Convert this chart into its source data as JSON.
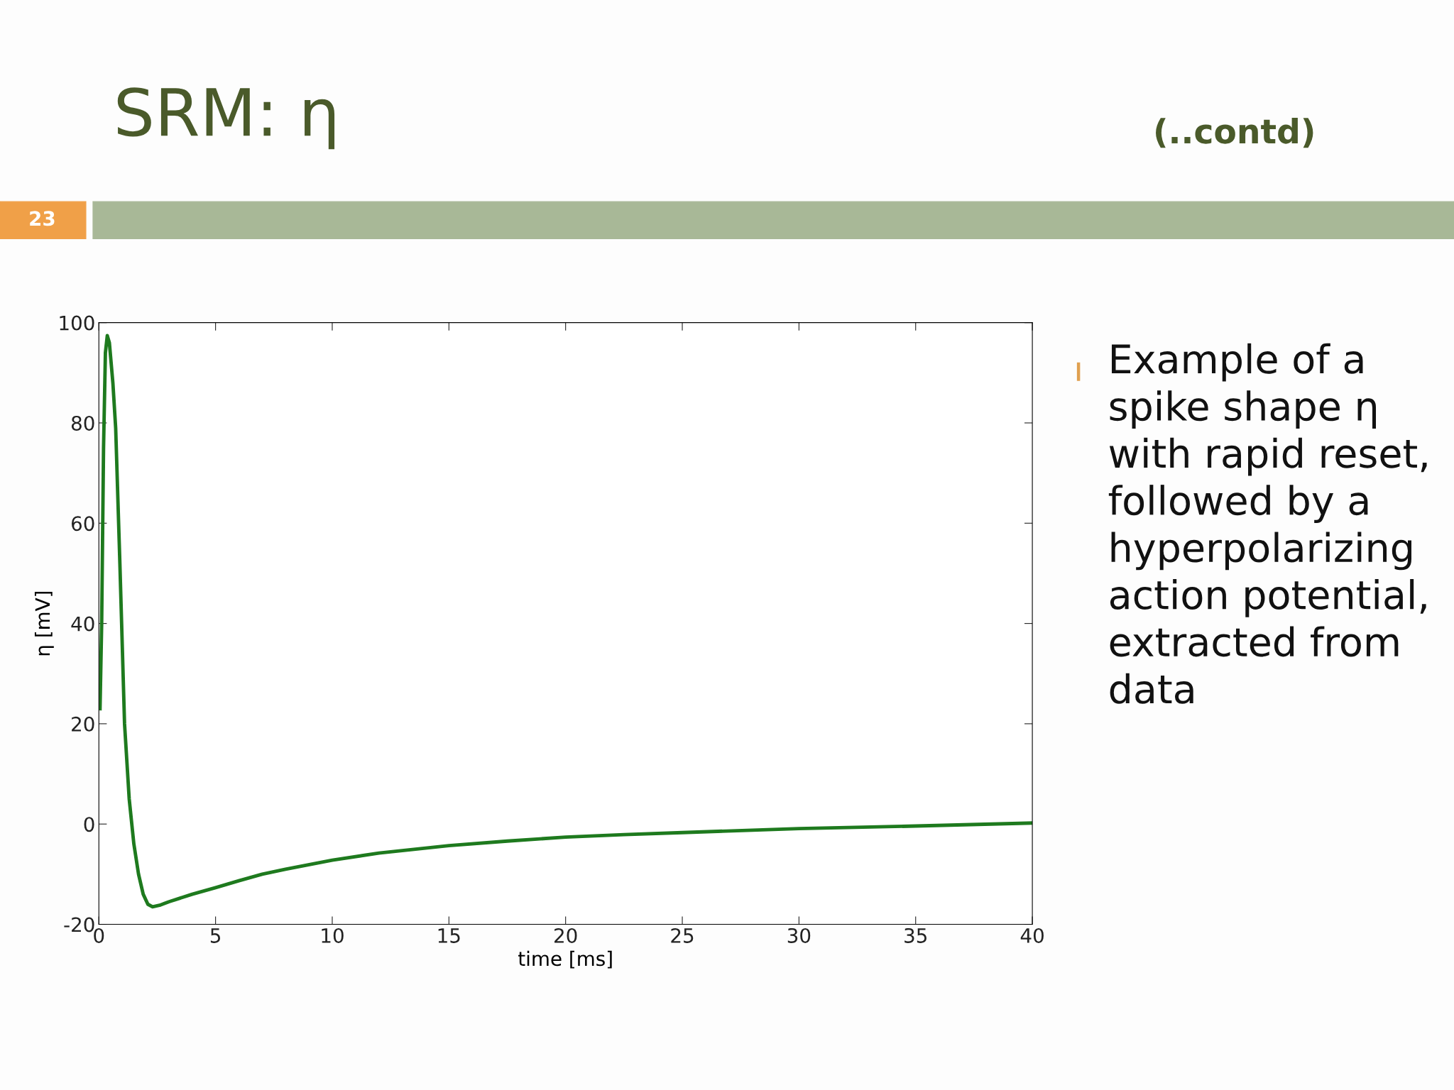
{
  "chart_data": {
    "type": "line",
    "title": "SRM: η",
    "xlabel": "time [ms]",
    "ylabel": "η [mV]",
    "annotations": [
      "(..contd)",
      "23",
      "Example of a spike shape η with rapid reset, followed by a hyperpolarizing action potential, extracted from data"
    ],
    "x": [
      0.05,
      0.12,
      0.2,
      0.28,
      0.36,
      0.45,
      0.6,
      0.72,
      0.9,
      1.1,
      1.3,
      1.5,
      1.7,
      1.9,
      2.1,
      2.3,
      2.6,
      3,
      4,
      5,
      6,
      7,
      8,
      10,
      12,
      15,
      17.5,
      20,
      22.5,
      25,
      30,
      35,
      40
    ],
    "series": [
      {
        "color": "#1e7a1e",
        "values": [
          23,
          40,
          75,
          94,
          97.4,
          96,
          88,
          79,
          52,
          20,
          5,
          -4,
          -10,
          -14,
          -16,
          -16.5,
          -16.2,
          -15.5,
          -14,
          -12.7,
          -11.3,
          -10,
          -9,
          -7.2,
          -5.8,
          -4.3,
          -3.4,
          -2.6,
          -2.1,
          -1.7,
          -0.9,
          -0.4,
          0.2
        ]
      }
    ],
    "xlim": [
      0,
      40
    ],
    "ylim": [
      -20,
      100
    ],
    "xticks": [
      0,
      5,
      10,
      15,
      20,
      25,
      30,
      35,
      40
    ],
    "yticks": [
      -20,
      0,
      20,
      40,
      60,
      80,
      100
    ],
    "grid": false,
    "line_style": "solid",
    "marker": "none"
  }
}
